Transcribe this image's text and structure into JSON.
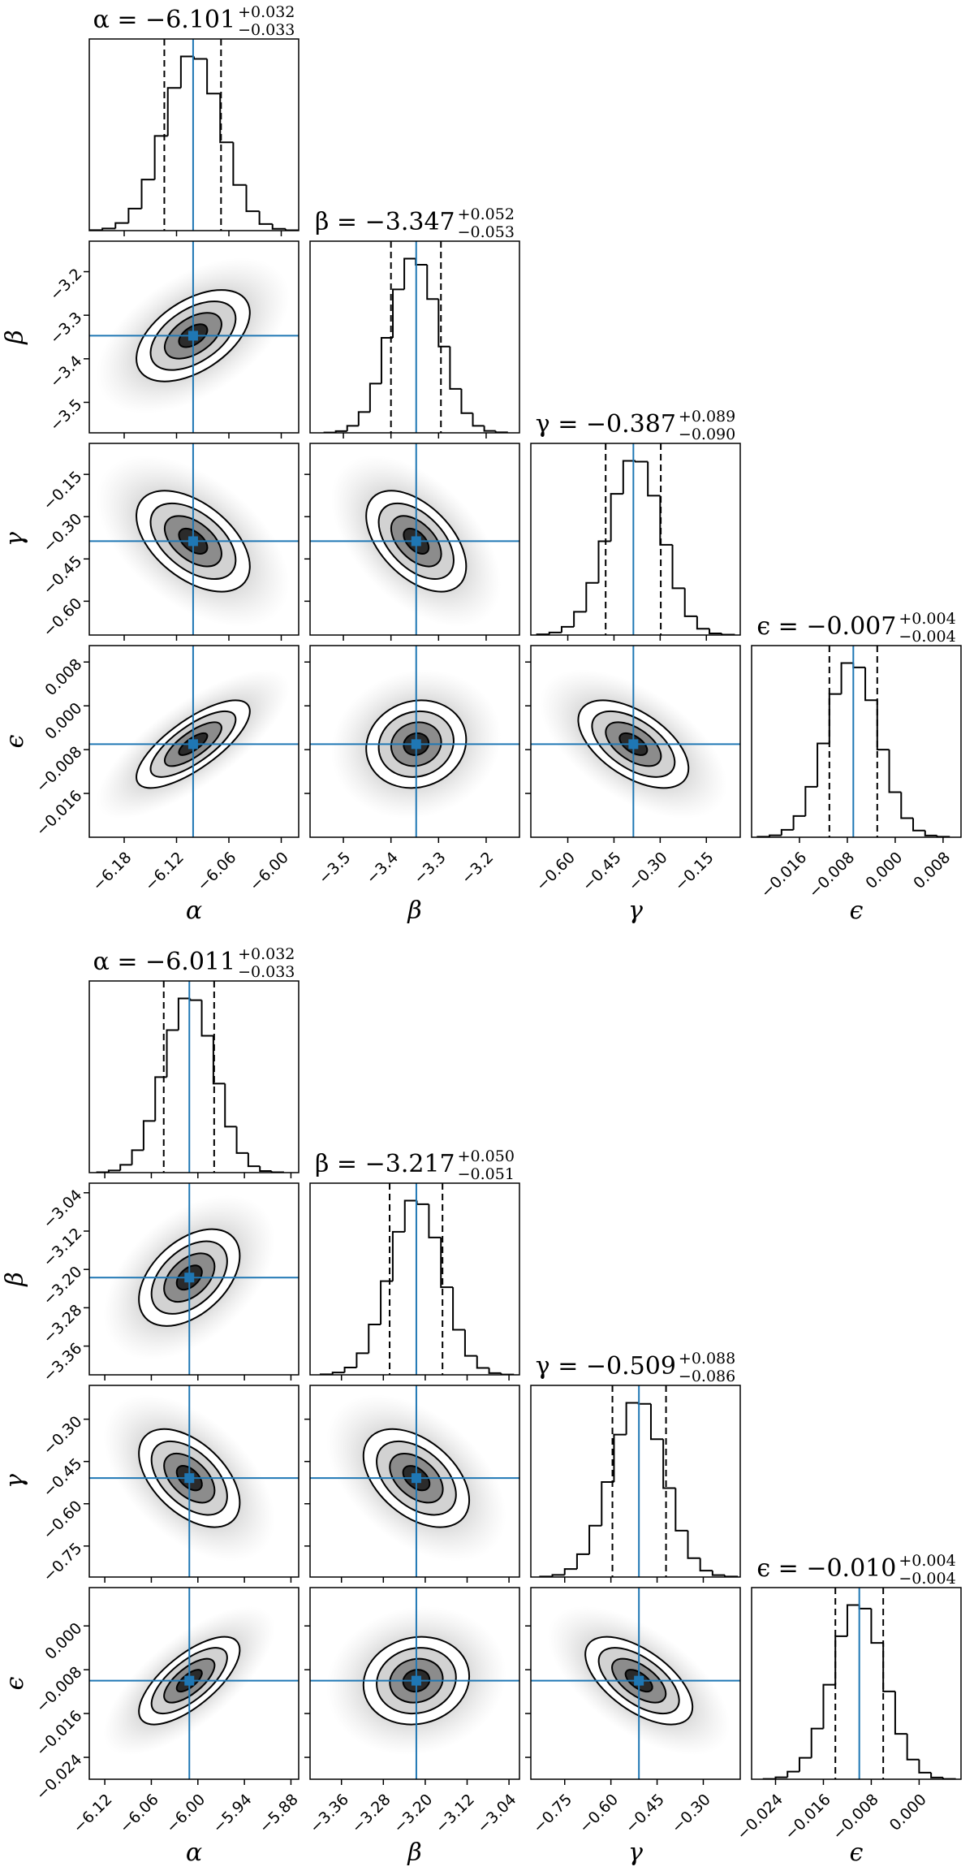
{
  "chart_data": [
    {
      "type": "corner",
      "line_color": "#1f77b4",
      "params": [
        {
          "label": "α",
          "title": "α = −6.101",
          "title_upper": "+0.032",
          "title_lower": "−0.033",
          "median": -6.101,
          "err_plus": 0.032,
          "err_minus": 0.033,
          "lim": [
            -6.22,
            -5.98
          ],
          "ticks": [
            {
              "value": -6.18,
              "label": "−6.18"
            },
            {
              "value": -6.12,
              "label": "−6.12"
            },
            {
              "value": -6.06,
              "label": "−6.06"
            },
            {
              "value": -6.0,
              "label": "−6.00"
            }
          ],
          "bins": [
            -6.22,
            -6.205,
            -6.19,
            -6.175,
            -6.16,
            -6.145,
            -6.13,
            -6.115,
            -6.1,
            -6.085,
            -6.07,
            -6.055,
            -6.04,
            -6.025,
            -6.01,
            -5.995,
            -5.98
          ],
          "counts": [
            3,
            12,
            43,
            124,
            287,
            533,
            803,
            980,
            966,
            771,
            497,
            257,
            109,
            37,
            10,
            2
          ]
        },
        {
          "label": "β",
          "title": "β = −3.347",
          "title_upper": "+0.052",
          "title_lower": "−0.053",
          "median": -3.347,
          "err_plus": 0.052,
          "err_minus": 0.053,
          "lim": [
            -3.57,
            -3.13
          ],
          "ticks": [
            {
              "value": -3.5,
              "label": "−3.5"
            },
            {
              "value": -3.4,
              "label": "−3.4"
            },
            {
              "value": -3.3,
              "label": "−3.3"
            },
            {
              "value": -3.2,
              "label": "−3.2"
            }
          ],
          "bins": [
            -3.54,
            -3.516,
            -3.492,
            -3.468,
            -3.444,
            -3.42,
            -3.396,
            -3.372,
            -3.348,
            -3.324,
            -3.3,
            -3.276,
            -3.252,
            -3.228,
            -3.204,
            -3.18,
            -3.156
          ],
          "counts": [
            2,
            10,
            40,
            118,
            280,
            540,
            815,
            990,
            955,
            760,
            490,
            250,
            112,
            40,
            11,
            3
          ]
        },
        {
          "label": "γ",
          "title": "γ = −0.387",
          "title_upper": "+0.089",
          "title_lower": "−0.090",
          "median": -0.387,
          "err_plus": 0.089,
          "err_minus": 0.09,
          "lim": [
            -0.72,
            -0.04
          ],
          "ticks": [
            {
              "value": -0.6,
              "label": "−0.60"
            },
            {
              "value": -0.45,
              "label": "−0.45"
            },
            {
              "value": -0.3,
              "label": "−0.30"
            },
            {
              "value": -0.15,
              "label": "−0.15"
            }
          ],
          "bins": [
            -0.7,
            -0.66,
            -0.62,
            -0.58,
            -0.54,
            -0.5,
            -0.46,
            -0.42,
            -0.38,
            -0.34,
            -0.3,
            -0.26,
            -0.22,
            -0.18,
            -0.14,
            -0.1,
            -0.06
          ],
          "counts": [
            4,
            14,
            46,
            130,
            292,
            525,
            790,
            975,
            970,
            780,
            505,
            262,
            105,
            35,
            9,
            2
          ]
        },
        {
          "label": "ϵ",
          "title": "ϵ = −0.007",
          "title_upper": "+0.004",
          "title_lower": "−0.004",
          "median": -0.007,
          "err_plus": 0.004,
          "err_minus": 0.004,
          "lim": [
            -0.024,
            0.011
          ],
          "ticks": [
            {
              "value": -0.016,
              "label": "−0.016"
            },
            {
              "value": -0.008,
              "label": "−0.008"
            },
            {
              "value": 0,
              "label": "0.000"
            },
            {
              "value": 0.008,
              "label": "0.008"
            }
          ],
          "bins": [
            -0.023,
            -0.021,
            -0.019,
            -0.017,
            -0.015,
            -0.013,
            -0.011,
            -0.009,
            -0.007,
            -0.005,
            -0.003,
            -0.001,
            0.001,
            0.003,
            0.005,
            0.007,
            0.009
          ],
          "counts": [
            3,
            11,
            42,
            120,
            285,
            530,
            810,
            985,
            960,
            775,
            495,
            255,
            108,
            38,
            10,
            3
          ]
        }
      ],
      "correlations": [
        [
          0.5
        ],
        [
          -0.5,
          -0.5
        ],
        [
          0.75,
          0.1,
          -0.55
        ]
      ]
    },
    {
      "type": "corner",
      "line_color": "#1f77b4",
      "params": [
        {
          "label": "α",
          "title": "α = −6.011",
          "title_upper": "+0.032",
          "title_lower": "−0.033",
          "median": -6.011,
          "err_plus": 0.032,
          "err_minus": 0.033,
          "lim": [
            -6.14,
            -5.87
          ],
          "ticks": [
            {
              "value": -6.12,
              "label": "−6.12"
            },
            {
              "value": -6.06,
              "label": "−6.06"
            },
            {
              "value": -6.0,
              "label": "−6.00"
            },
            {
              "value": -5.94,
              "label": "−5.94"
            },
            {
              "value": -5.88,
              "label": "−5.88"
            }
          ],
          "bins": [
            -6.13,
            -6.115,
            -6.1,
            -6.085,
            -6.07,
            -6.055,
            -6.04,
            -6.025,
            -6.01,
            -5.995,
            -5.98,
            -5.965,
            -5.95,
            -5.935,
            -5.92,
            -5.905,
            -5.89
          ],
          "counts": [
            2,
            12,
            44,
            126,
            290,
            536,
            800,
            978,
            968,
            768,
            500,
            258,
            110,
            36,
            9,
            2
          ]
        },
        {
          "label": "β",
          "title": "β = −3.217",
          "title_upper": "+0.050",
          "title_lower": "−0.051",
          "median": -3.217,
          "err_plus": 0.05,
          "err_minus": 0.051,
          "lim": [
            -3.42,
            -3.02
          ],
          "ticks": [
            {
              "value": -3.36,
              "label": "−3.36"
            },
            {
              "value": -3.28,
              "label": "−3.28"
            },
            {
              "value": -3.2,
              "label": "−3.20"
            },
            {
              "value": -3.12,
              "label": "−3.12"
            },
            {
              "value": -3.04,
              "label": "−3.04"
            }
          ],
          "bins": [
            -3.4,
            -3.377,
            -3.354,
            -3.331,
            -3.308,
            -3.285,
            -3.262,
            -3.239,
            -3.216,
            -3.193,
            -3.17,
            -3.147,
            -3.124,
            -3.101,
            -3.078,
            -3.055,
            -3.032
          ],
          "counts": [
            3,
            13,
            41,
            122,
            284,
            528,
            806,
            982,
            962,
            774,
            494,
            254,
            107,
            39,
            10,
            2
          ]
        },
        {
          "label": "γ",
          "title": "γ = −0.509",
          "title_upper": "+0.088",
          "title_lower": "−0.086",
          "median": -0.509,
          "err_plus": 0.088,
          "err_minus": 0.086,
          "lim": [
            -0.86,
            -0.18
          ],
          "ticks": [
            {
              "value": -0.75,
              "label": "−0.75"
            },
            {
              "value": -0.6,
              "label": "−0.60"
            },
            {
              "value": -0.45,
              "label": "−0.45"
            },
            {
              "value": -0.3,
              "label": "−0.30"
            }
          ],
          "bins": [
            -0.83,
            -0.79,
            -0.75,
            -0.71,
            -0.67,
            -0.63,
            -0.59,
            -0.55,
            -0.51,
            -0.47,
            -0.43,
            -0.39,
            -0.35,
            -0.31,
            -0.27,
            -0.23,
            -0.19
          ],
          "counts": [
            3,
            12,
            45,
            128,
            288,
            532,
            798,
            976,
            970,
            772,
            498,
            260,
            106,
            36,
            11,
            3
          ]
        },
        {
          "label": "ϵ",
          "title": "ϵ = −0.010",
          "title_upper": "+0.004",
          "title_lower": "−0.004",
          "median": -0.01,
          "err_plus": 0.004,
          "err_minus": 0.004,
          "lim": [
            -0.028,
            0.007
          ],
          "ticks": [
            {
              "value": -0.024,
              "label": "−0.024"
            },
            {
              "value": -0.016,
              "label": "−0.016"
            },
            {
              "value": -0.008,
              "label": "−0.008"
            },
            {
              "value": 0,
              "label": "0.000"
            }
          ],
          "bins": [
            -0.026,
            -0.024,
            -0.022,
            -0.02,
            -0.018,
            -0.016,
            -0.014,
            -0.012,
            -0.01,
            -0.008,
            -0.006,
            -0.004,
            -0.002,
            0,
            0.002,
            0.004,
            0.006
          ],
          "counts": [
            2,
            11,
            43,
            121,
            286,
            534,
            808,
            984,
            964,
            770,
            496,
            256,
            111,
            37,
            10,
            2
          ]
        }
      ],
      "correlations": [
        [
          0.45
        ],
        [
          -0.5,
          -0.45
        ],
        [
          0.7,
          0.1,
          -0.6
        ]
      ]
    }
  ]
}
